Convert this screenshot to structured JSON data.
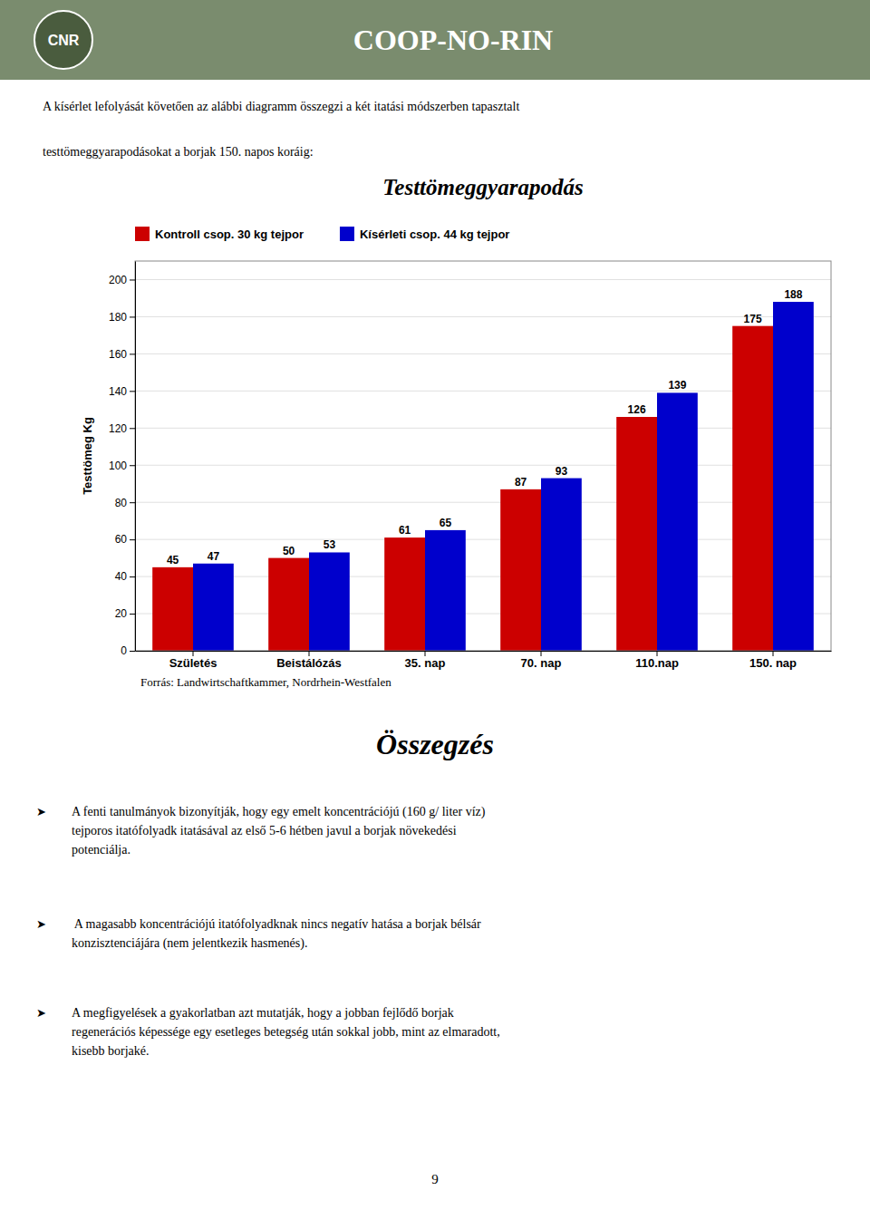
{
  "header_text": "COOP-NO-RIN",
  "logo_text": "CNR",
  "intro_lines": [
    "A kísérlet lefolyását követően az alábbi diagramm összegzi a két itatási módszerben tapasztalt",
    "testtömeggyarapodásokat a borjak 150. napos koráig:"
  ],
  "chart_data": {
    "type": "bar",
    "title": "Testtömeggyarapodás",
    "categories": [
      "Születés",
      "Beistálózás",
      "35. nap",
      "70. nap",
      "110.nap",
      "150. nap"
    ],
    "series": [
      {
        "name": "Kontroll csop. 30 kg tejpor",
        "color": "#cc0000",
        "values": [
          45,
          50,
          61,
          87,
          126,
          175
        ]
      },
      {
        "name": "Kísérleti csop. 44 kg tejpor",
        "color": "#0000cc",
        "values": [
          47,
          53,
          65,
          93,
          139,
          188
        ]
      }
    ],
    "ylabel": "Testtömeg Kg",
    "ylim": [
      0,
      210
    ],
    "yticks": [
      0,
      20,
      40,
      60,
      80,
      100,
      120,
      140,
      160,
      180,
      200
    ],
    "grid": true,
    "legend": "top",
    "data_labels": true
  },
  "source_text": "Forrás: Landwirtschaftkammer, Nordrhein-Westfalen",
  "summary_title": "Összegzés",
  "bullet_symbol": "➤",
  "bullets": [
    [
      "A fenti tanulmányok bizonyítják, hogy egy emelt koncentrációjú (160 g/ liter víz)",
      "tejporos itatófolyadk itatásával az első 5-6 hétben javul a borjak növekedési",
      "potenciálja."
    ],
    [
      " A magasabb koncentrációjú itatófolyadknak nincs negatív hatása a borjak bélsár",
      "konzisztenciájára (nem jelentkezik hasmenés)."
    ],
    [
      "A megfigyelések a gyakorlatban azt mutatják, hogy a jobban fejlődő borjak",
      "regenerációs képessége egy esetleges betegség után sokkal jobb, mint az elmaradott,",
      "kisebb borjaké."
    ]
  ],
  "page_number": "9"
}
